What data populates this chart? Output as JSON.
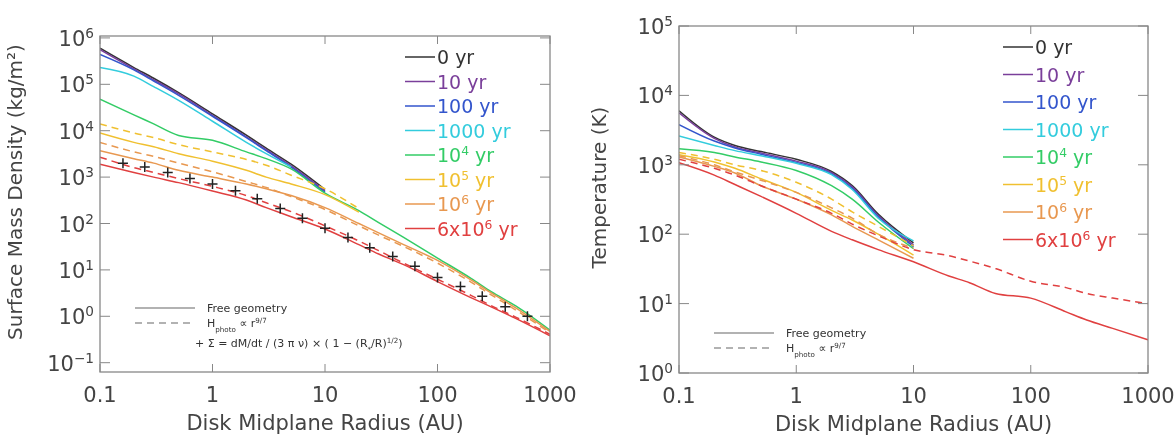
{
  "chart_data": [
    {
      "type": "line",
      "xlabel": "Disk Midplane Radius (AU)",
      "ylabel": "Surface Mass Density (kg/m²)",
      "log": "xy",
      "legend": "top right",
      "xlim": [
        0.1,
        1000
      ],
      "ylim": [
        0.063,
        1100000
      ],
      "xticks": [
        0.1,
        1,
        10,
        100,
        1000
      ],
      "yticks": [
        {
          "value": 0.1,
          "label": "10$^{−1}$"
        },
        {
          "value": 1,
          "label": "10$^{0}$"
        },
        {
          "value": 10,
          "label": "10$^{1}$"
        },
        {
          "value": 100,
          "label": "10$^{2}$"
        },
        {
          "value": 1000,
          "label": "10$^{3}$"
        },
        {
          "value": 10000,
          "label": "10$^{4}$"
        },
        {
          "value": 100000,
          "label": "10$^{5}$"
        },
        {
          "value": 1000000,
          "label": "10$^{6}$"
        }
      ],
      "x": [
        0.1,
        0.2,
        0.3,
        0.5,
        1,
        2,
        3,
        5,
        10,
        20,
        30,
        50,
        100,
        200,
        300,
        500,
        1000
      ],
      "annotations": [
        "Free geometry",
        "H$_{photo}$ ∝ r$^{9/7}$",
        "+ Σ = dM/dt / (3 π ν) × ( 1 − (R$_{*}$/R)$^{1/2}$)"
      ],
      "series": [
        {
          "name": "0 yr",
          "color": "#333333",
          "line_style": "solid",
          "values": [
            600000,
            230000,
            135000,
            66000,
            23000,
            8000,
            4200,
            1900,
            540,
            null,
            null,
            null,
            null,
            null,
            null,
            null,
            null
          ]
        },
        {
          "name": "10 yr",
          "color": "#7a3f9a",
          "line_style": "solid",
          "values": [
            560000,
            215000,
            125000,
            62000,
            21500,
            7400,
            3900,
            1750,
            505,
            null,
            null,
            null,
            null,
            null,
            null,
            null,
            null
          ]
        },
        {
          "name": "100 yr",
          "color": "#3355cc",
          "line_style": "solid",
          "values": [
            440000,
            205000,
            118000,
            58000,
            20500,
            7100,
            3700,
            1650,
            475,
            null,
            null,
            null,
            null,
            null,
            null,
            null,
            null
          ]
        },
        {
          "name": "1000 yr",
          "color": "#33ccdd",
          "line_style": "solid",
          "values": [
            230000,
            150000,
            89000,
            45000,
            16000,
            5600,
            3200,
            1650,
            null,
            null,
            null,
            null,
            null,
            null,
            null,
            null,
            null
          ]
        },
        {
          "name": "10$^{4}$ yr",
          "color": "#33cc66",
          "line_style": "solid",
          "values": [
            48000,
            22000,
            14000,
            7900,
            6200,
            3500,
            2500,
            1500,
            450,
            190,
            105,
            50,
            18,
            6.5,
            3.4,
            1.65,
            0.5
          ]
        },
        {
          "name": "10$^{5}$ yr",
          "color": "#f0c030",
          "line_style": "solid",
          "values": [
            8900,
            5600,
            4500,
            3200,
            2200,
            1400,
            1000,
            710,
            420,
            175,
            null,
            null,
            null,
            null,
            null,
            null,
            null
          ]
        },
        {
          "name": "10$^{6}$ yr",
          "color": "#e89850",
          "line_style": "solid",
          "values": [
            3700,
            2500,
            2000,
            1400,
            1000,
            710,
            560,
            400,
            220,
            100,
            63,
            35,
            16,
            6.0,
            3.2,
            1.5,
            0.47
          ]
        },
        {
          "name": "6x10$^{6}$ yr",
          "color": "#e04040",
          "line_style": "solid",
          "values": [
            1900,
            1260,
            1000,
            760,
            500,
            320,
            220,
            140,
            76,
            35,
            22,
            13,
            5.6,
            2.5,
            1.6,
            0.89,
            0.38
          ]
        },
        {
          "color": "#f0c030",
          "line_style": "dashed",
          "values": [
            14000,
            8900,
            7100,
            5000,
            3500,
            2400,
            1800,
            1100,
            560,
            210,
            null,
            null,
            null,
            null,
            null,
            null,
            null
          ]
        },
        {
          "color": "#e89850",
          "line_style": "dashed",
          "values": [
            5600,
            3500,
            2800,
            2000,
            1300,
            800,
            600,
            380,
            200,
            89,
            56,
            32,
            14,
            5.4,
            2.9,
            1.35,
            0.44
          ]
        },
        {
          "color": "#e04040",
          "line_style": "dashed",
          "values": [
            2700,
            1600,
            1260,
            930,
            630,
            400,
            280,
            180,
            89,
            42,
            26,
            14,
            6.3,
            2.8,
            1.7,
            0.95,
            0.41
          ]
        },
        {
          "type": "scatter",
          "marker": "cross",
          "color": "#222222",
          "x": [
            0.16,
            0.25,
            0.4,
            0.63,
            1,
            1.6,
            2.5,
            4,
            6.3,
            10,
            16,
            25,
            40,
            63,
            100,
            160,
            250,
            400,
            630
          ],
          "values": [
            2000,
            1660,
            1260,
            930,
            710,
            510,
            340,
            210,
            130,
            79,
            50,
            30,
            19.5,
            12,
            6.9,
            4.4,
            2.7,
            1.6,
            1.0
          ]
        }
      ]
    },
    {
      "type": "line",
      "xlabel": "Disk Midplane Radius (AU)",
      "ylabel": "Temperature (K)",
      "log": "xy",
      "legend": "top right",
      "xlim": [
        0.1,
        1000
      ],
      "ylim": [
        1,
        100000
      ],
      "xticks": [
        0.1,
        1,
        10,
        100,
        1000
      ],
      "yticks": [
        {
          "value": 1,
          "label": "10$^{0}$"
        },
        {
          "value": 10,
          "label": "10$^{1}$"
        },
        {
          "value": 100,
          "label": "10$^{2}$"
        },
        {
          "value": 1000,
          "label": "10$^{3}$"
        },
        {
          "value": 10000,
          "label": "10$^{4}$"
        },
        {
          "value": 100000,
          "label": "10$^{5}$"
        }
      ],
      "x": [
        0.1,
        0.2,
        0.3,
        0.5,
        1,
        2,
        3,
        5,
        10,
        20,
        30,
        50,
        100,
        200,
        300,
        500,
        1000
      ],
      "annotations": [
        "Free geometry",
        "H$_{photo}$ ∝ r$^{9/7}$"
      ],
      "series": [
        {
          "name": "0 yr",
          "color": "#333333",
          "line_style": "solid",
          "values": [
            6000,
            2500,
            1900,
            1550,
            1200,
            800,
            500,
            195,
            75,
            null,
            null,
            null,
            null,
            null,
            null,
            null,
            null
          ]
        },
        {
          "name": "10 yr",
          "color": "#7a3f9a",
          "line_style": "solid",
          "values": [
            5600,
            2400,
            1800,
            1480,
            1130,
            770,
            480,
            185,
            70,
            null,
            null,
            null,
            null,
            null,
            null,
            null,
            null
          ]
        },
        {
          "name": "100 yr",
          "color": "#3355cc",
          "line_style": "solid",
          "values": [
            3800,
            2200,
            1750,
            1420,
            1080,
            740,
            460,
            178,
            66,
            null,
            null,
            null,
            null,
            null,
            null,
            null,
            null
          ]
        },
        {
          "name": "1000 yr",
          "color": "#33ccdd",
          "line_style": "solid",
          "values": [
            2600,
            1900,
            1600,
            1350,
            1050,
            720,
            440,
            170,
            80,
            null,
            null,
            null,
            null,
            null,
            null,
            null,
            null
          ]
        },
        {
          "name": "10$^{4}$ yr",
          "color": "#33cc66",
          "line_style": "solid",
          "values": [
            1700,
            1500,
            1300,
            1100,
            830,
            500,
            320,
            150,
            62,
            null,
            null,
            null,
            null,
            null,
            null,
            null,
            null
          ]
        },
        {
          "name": "10$^{5}$ yr",
          "color": "#f0c030",
          "line_style": "solid",
          "values": [
            1400,
            1100,
            890,
            630,
            400,
            220,
            160,
            100,
            50,
            null,
            null,
            null,
            null,
            null,
            null,
            null,
            null
          ]
        },
        {
          "name": "10$^{6}$ yr",
          "color": "#e89850",
          "line_style": "solid",
          "values": [
            1300,
            950,
            760,
            500,
            320,
            190,
            130,
            83,
            45,
            null,
            null,
            null,
            null,
            null,
            null,
            null,
            null
          ]
        },
        {
          "name": "6x10$^{6}$ yr",
          "color": "#e04040",
          "line_style": "solid",
          "values": [
            1070,
            710,
            520,
            350,
            200,
            110,
            83,
            60,
            40,
            25,
            20,
            14,
            12,
            7.6,
            5.8,
            4.4,
            3.0
          ]
        },
        {
          "color": "#f0c030",
          "line_style": "dashed",
          "values": [
            1500,
            1200,
            1000,
            830,
            560,
            320,
            210,
            130,
            68,
            null,
            null,
            null,
            null,
            null,
            null,
            null,
            null
          ]
        },
        {
          "color": "#e89850",
          "line_style": "dashed",
          "values": [
            1350,
            1000,
            790,
            600,
            400,
            240,
            170,
            100,
            63,
            null,
            null,
            null,
            null,
            null,
            null,
            null,
            null
          ]
        },
        {
          "color": "#e04040",
          "line_style": "dashed",
          "values": [
            1200,
            890,
            710,
            500,
            320,
            200,
            140,
            95,
            60,
            49,
            41,
            32,
            21,
            17,
            14,
            12,
            10
          ]
        }
      ]
    }
  ]
}
